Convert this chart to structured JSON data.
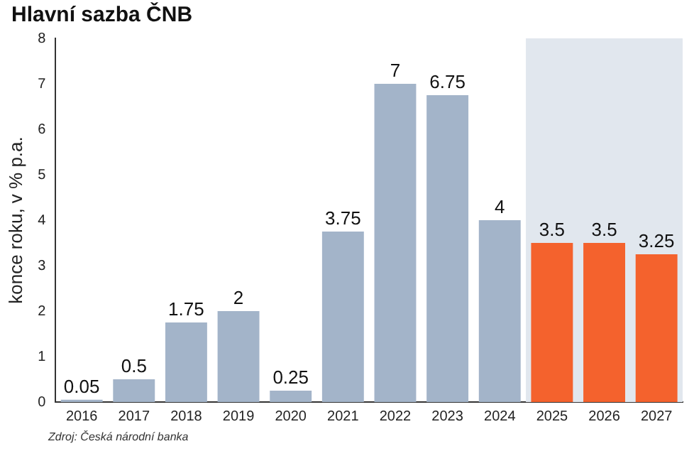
{
  "chart_data": {
    "type": "bar",
    "title": "Hlavní sazba ČNB",
    "ylabel": "konce roku, v % p.a.",
    "categories": [
      "2016",
      "2017",
      "2018",
      "2019",
      "2020",
      "2021",
      "2022",
      "2023",
      "2024",
      "2025",
      "2026",
      "2027"
    ],
    "values": [
      0.05,
      0.5,
      1.75,
      2,
      0.25,
      3.75,
      7,
      6.75,
      4,
      3.5,
      3.5,
      3.25
    ],
    "colors": [
      "#a3b4c9",
      "#a3b4c9",
      "#a3b4c9",
      "#a3b4c9",
      "#a3b4c9",
      "#a3b4c9",
      "#a3b4c9",
      "#a3b4c9",
      "#a3b4c9",
      "#f4622d",
      "#f4622d",
      "#f4622d"
    ],
    "ylim": [
      0,
      8
    ],
    "yticks": [
      0,
      1,
      2,
      3,
      4,
      5,
      6,
      7,
      8
    ],
    "grid": false,
    "legend": false,
    "data_labels": true,
    "bands": [
      {
        "axis": "x",
        "from": "2025",
        "to": "2027",
        "color": "#e1e7ee"
      }
    ],
    "annotations": [
      "Zdroj: Česká národní banka"
    ]
  }
}
